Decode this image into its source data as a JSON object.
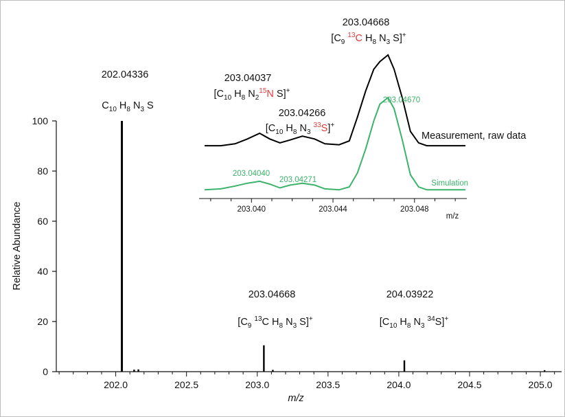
{
  "chart_data": [
    {
      "type": "line",
      "subtype": "mass-spectrum",
      "xlabel": "m/z",
      "ylabel": "Relative Abundance",
      "xlim": [
        201.58,
        205.15
      ],
      "ylim": [
        0,
        100
      ],
      "x_ticks": [
        "202.0",
        "202.5",
        "203.0",
        "203.5",
        "204.0",
        "204.5",
        "205.0"
      ],
      "x_tick_values": [
        202.0,
        202.5,
        203.0,
        203.5,
        204.0,
        204.5,
        205.0
      ],
      "y_ticks": [
        "0",
        "20",
        "40",
        "60",
        "80",
        "100"
      ],
      "y_tick_values": [
        0,
        20,
        40,
        60,
        80,
        100
      ],
      "peaks": [
        {
          "mz": 202.04336,
          "intensity": 100
        },
        {
          "mz": 202.13,
          "intensity": 0.8
        },
        {
          "mz": 202.16,
          "intensity": 0.9
        },
        {
          "mz": 203.04668,
          "intensity": 10.5
        },
        {
          "mz": 203.11,
          "intensity": 0.7
        },
        {
          "mz": 204.03922,
          "intensity": 4.5
        },
        {
          "mz": 205.03,
          "intensity": 0.6
        }
      ],
      "annotations": [
        {
          "mz_label": "202.04336",
          "formula": {
            "parts": [
              [
                "C",
                ""
              ],
              [
                "10",
                "sub"
              ],
              [
                " H",
                ""
              ],
              [
                "8",
                "sub"
              ],
              [
                " N",
                ""
              ],
              [
                "3",
                "sub"
              ],
              [
                " S",
                ""
              ]
            ]
          }
        },
        {
          "mz_label": "203.04668",
          "formula": {
            "parts": [
              [
                "[C",
                ""
              ],
              [
                "9",
                "sub"
              ],
              [
                " ",
                ""
              ],
              [
                "13",
                "sup"
              ],
              [
                "C H",
                ""
              ],
              [
                "8",
                "sub"
              ],
              [
                " N",
                ""
              ],
              [
                "3",
                "sub"
              ],
              [
                " S]",
                ""
              ],
              [
                "+",
                "sup"
              ]
            ]
          }
        },
        {
          "mz_label": "204.03922",
          "formula": {
            "parts": [
              [
                "[C",
                ""
              ],
              [
                "10",
                "sub"
              ],
              [
                " H",
                ""
              ],
              [
                "8",
                "sub"
              ],
              [
                " N",
                ""
              ],
              [
                "3",
                "sub"
              ],
              [
                " ",
                ""
              ],
              [
                "34",
                "sup"
              ],
              [
                "S]",
                ""
              ],
              [
                "+",
                "sup"
              ]
            ]
          }
        }
      ]
    },
    {
      "type": "line",
      "subtype": "inset-zoom",
      "xlabel": "m/z",
      "xlim": [
        203.0377,
        203.0505
      ],
      "x_ticks": [
        "203.040",
        "203.044",
        "203.048"
      ],
      "x_tick_values": [
        203.04,
        203.044,
        203.048
      ],
      "series": [
        {
          "name": "Measurement, raw data",
          "color": "#000000",
          "x": [
            203.0377,
            203.0385,
            203.0392,
            203.0398,
            203.0404,
            203.0409,
            203.0414,
            203.0419,
            203.0425,
            203.0431,
            203.0436,
            203.0443,
            203.0448,
            203.0452,
            203.0456,
            203.046,
            203.0463,
            203.0467,
            203.047,
            203.0474,
            203.0478,
            203.0482,
            203.0486,
            203.049,
            203.0495,
            203.0505
          ],
          "y": [
            0.05,
            0.05,
            0.07,
            0.12,
            0.18,
            0.12,
            0.08,
            0.11,
            0.15,
            0.12,
            0.07,
            0.06,
            0.1,
            0.35,
            0.62,
            0.85,
            0.93,
            1.0,
            0.85,
            0.55,
            0.2,
            0.08,
            0.05,
            0.05,
            0.05,
            0.05
          ]
        },
        {
          "name": "Simulation",
          "color": "#3bb36b",
          "x": [
            203.0377,
            203.0385,
            203.0392,
            203.0398,
            203.0404,
            203.0409,
            203.0414,
            203.0419,
            203.0425,
            203.0431,
            203.0436,
            203.0443,
            203.0448,
            203.0452,
            203.0456,
            203.046,
            203.0463,
            203.0467,
            203.047,
            203.0474,
            203.0478,
            203.0482,
            203.0486,
            203.049,
            203.0495,
            203.0505
          ],
          "y": [
            0.02,
            0.03,
            0.06,
            0.09,
            0.11,
            0.08,
            0.04,
            0.07,
            0.09,
            0.07,
            0.03,
            0.02,
            0.05,
            0.2,
            0.45,
            0.75,
            0.93,
            1.0,
            0.88,
            0.55,
            0.18,
            0.05,
            0.02,
            0.02,
            0.02,
            0.02
          ]
        }
      ],
      "annotations": [
        {
          "mz_label": "203.04668",
          "formula": {
            "parts": [
              [
                "[C",
                ""
              ],
              [
                "9",
                "sub"
              ],
              [
                " ",
                ""
              ],
              [
                "13",
                "sup-red"
              ],
              [
                "C",
                "red"
              ],
              [
                " H",
                ""
              ],
              [
                "8",
                "sub"
              ],
              [
                " N",
                ""
              ],
              [
                "3",
                "sub"
              ],
              [
                " S]",
                ""
              ],
              [
                "+",
                "sup"
              ]
            ]
          }
        },
        {
          "mz_label": "203.04037",
          "formula": {
            "parts": [
              [
                "[C",
                ""
              ],
              [
                "10",
                "sub"
              ],
              [
                " H",
                ""
              ],
              [
                "8",
                "sub"
              ],
              [
                " N",
                ""
              ],
              [
                "2",
                "sub"
              ],
              [
                "15",
                "sup-red"
              ],
              [
                "N",
                "red"
              ],
              [
                " S]",
                ""
              ],
              [
                "+",
                "sup"
              ]
            ]
          }
        },
        {
          "mz_label": "203.04266",
          "formula": {
            "parts": [
              [
                "[C",
                ""
              ],
              [
                "10",
                "sub"
              ],
              [
                " H",
                ""
              ],
              [
                "8",
                "sub"
              ],
              [
                " N",
                ""
              ],
              [
                "3",
                "sub"
              ],
              [
                " ",
                ""
              ],
              [
                "33",
                "sup-red"
              ],
              [
                "S",
                "red"
              ],
              [
                "]",
                ""
              ],
              [
                "+",
                "sup"
              ]
            ]
          }
        },
        {
          "label": "203.04670",
          "color": "#3bb36b"
        },
        {
          "label": "203.04040",
          "color": "#3bb36b"
        },
        {
          "label": "203.04271",
          "color": "#3bb36b"
        }
      ]
    }
  ]
}
